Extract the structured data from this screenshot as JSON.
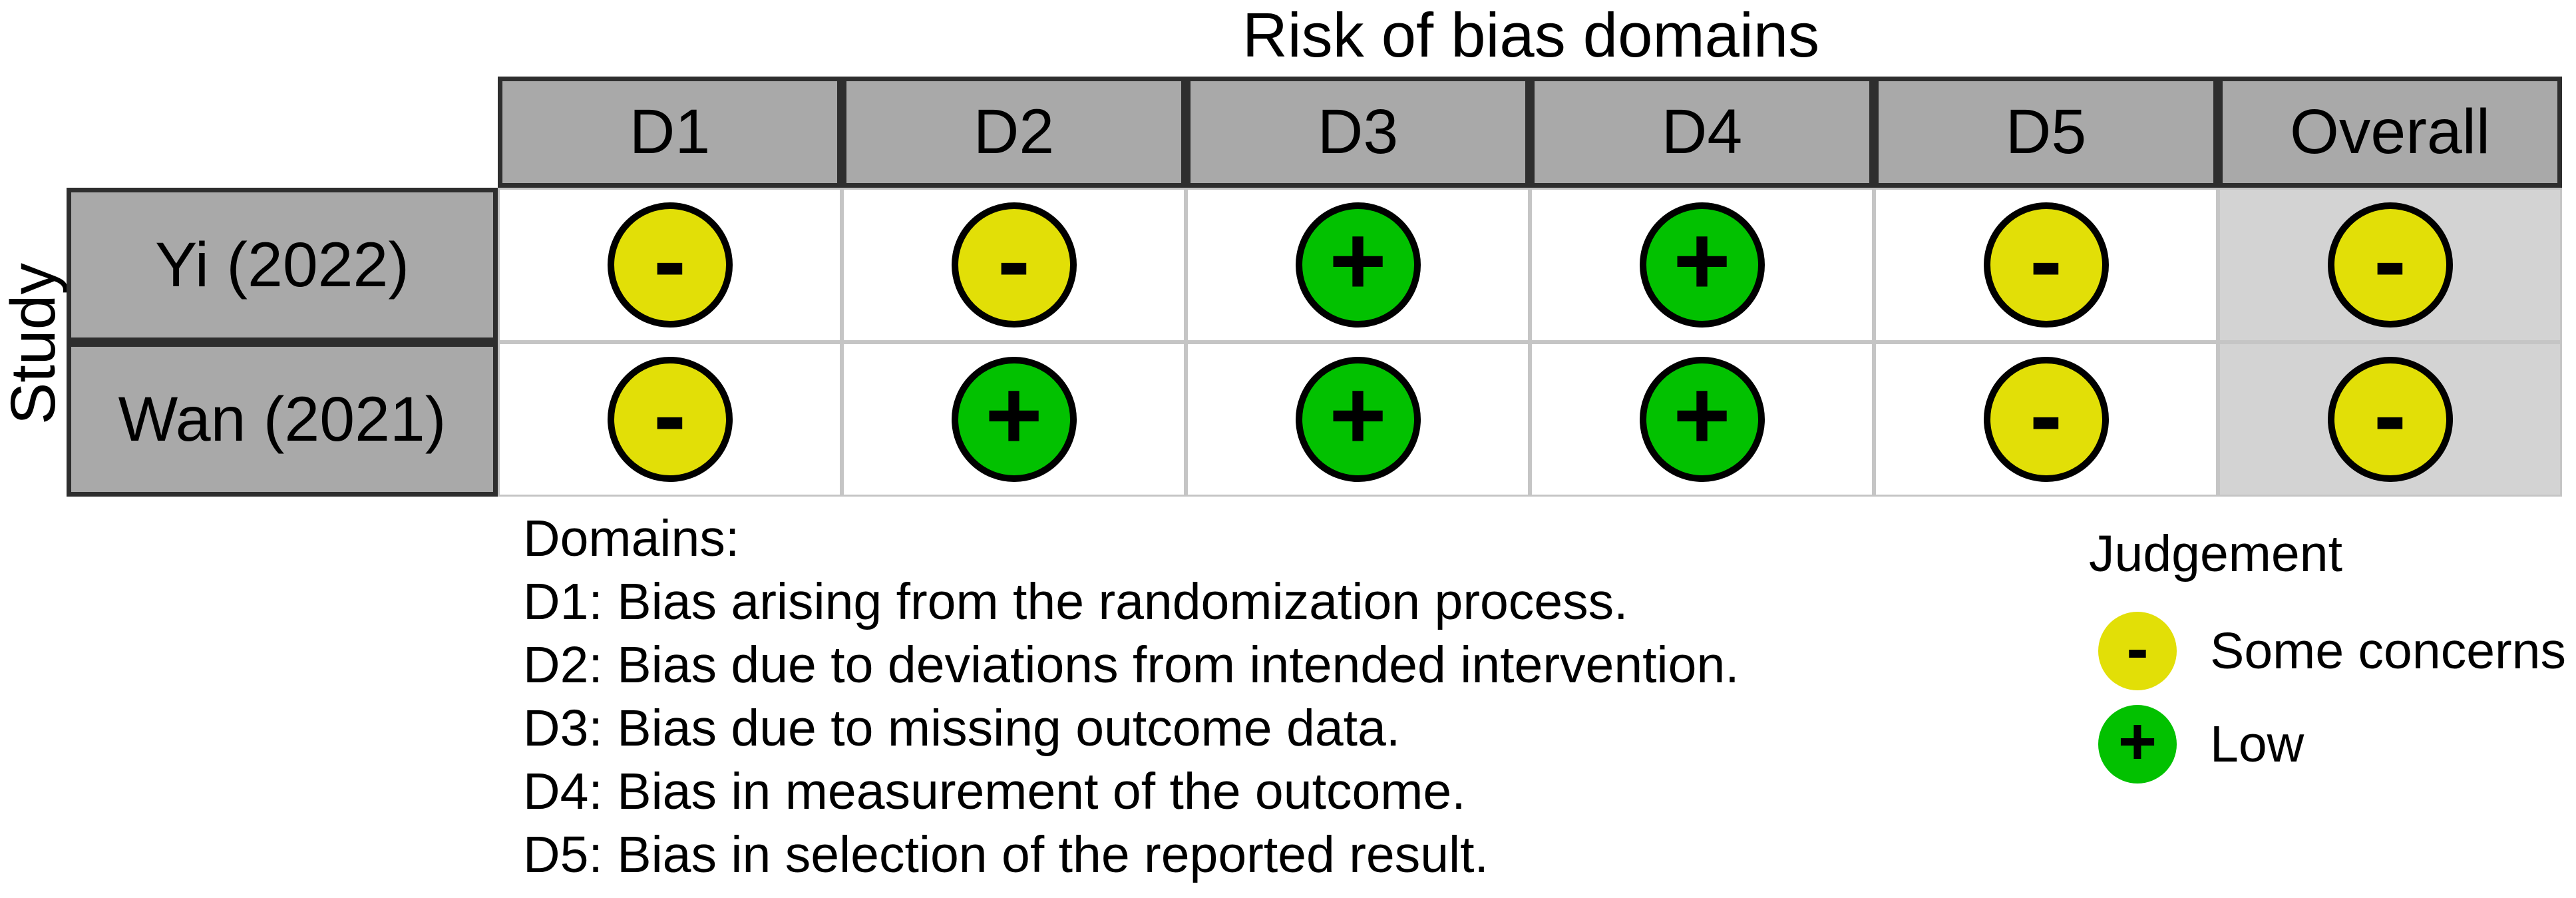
{
  "title": "Risk of bias domains",
  "axis_label": "Study",
  "columns": [
    "D1",
    "D2",
    "D3",
    "D4",
    "D5",
    "Overall"
  ],
  "rows": [
    {
      "study": "Yi (2022)",
      "judgements": [
        "some_concerns",
        "some_concerns",
        "low",
        "low",
        "some_concerns",
        "some_concerns"
      ]
    },
    {
      "study": "Wan (2021)",
      "judgements": [
        "some_concerns",
        "low",
        "low",
        "low",
        "some_concerns",
        "some_concerns"
      ]
    }
  ],
  "symbols": {
    "some_concerns": "-",
    "low": "+"
  },
  "colors": {
    "some_concerns": "#E2DF07",
    "low": "#02C100",
    "header_bg": "#A9A9A9",
    "overall_bg": "#D3D3D3",
    "grid_line": "#C5C5C5",
    "dark_border": "#2E2E2E",
    "symbol": "#000000"
  },
  "domains_legend": {
    "heading": "Domains:",
    "items": [
      "D1: Bias arising from the randomization process.",
      "D2: Bias due to deviations from intended intervention.",
      "D3: Bias due to missing outcome data.",
      "D4: Bias in measurement of the outcome.",
      "D5: Bias in selection of the reported result."
    ]
  },
  "judgement_legend": {
    "title": "Judgement",
    "items": [
      {
        "key": "some_concerns",
        "symbol": "-",
        "label": "Some concerns"
      },
      {
        "key": "low",
        "symbol": "+",
        "label": "Low"
      }
    ]
  },
  "chart_data": {
    "type": "table",
    "title": "Risk of bias domains",
    "x_categories": [
      "D1",
      "D2",
      "D3",
      "D4",
      "D5",
      "Overall"
    ],
    "y_categories": [
      "Yi (2022)",
      "Wan (2021)"
    ],
    "values": [
      [
        "Some concerns",
        "Some concerns",
        "Low",
        "Low",
        "Some concerns",
        "Some concerns"
      ],
      [
        "Some concerns",
        "Low",
        "Low",
        "Low",
        "Some concerns",
        "Some concerns"
      ]
    ],
    "legend": {
      "Some concerns": "#E2DF07",
      "Low": "#02C100"
    },
    "legend_position": "bottom-right",
    "grid": "light-gray-panel-borders"
  }
}
